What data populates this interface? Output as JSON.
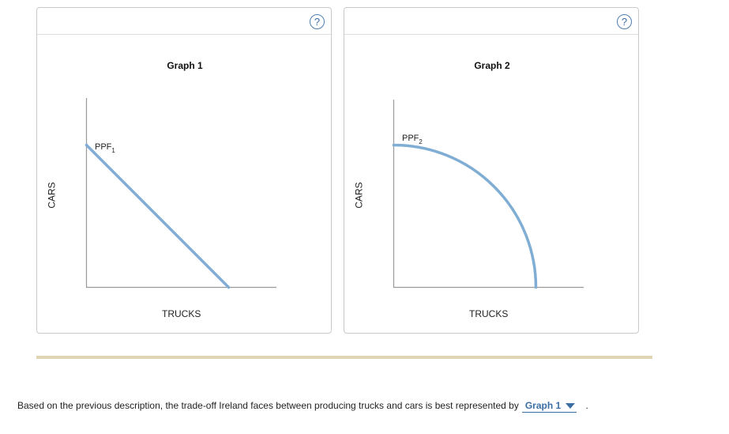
{
  "help_icon_label": "?",
  "question": {
    "text": "Based on the previous description, the trade-off Ireland faces between producing trucks and cars is best represented by",
    "selected": "Graph 1",
    "end_punct": "."
  },
  "chart_data": [
    {
      "type": "line",
      "title": "Graph 1",
      "xlabel": "TRUCKS",
      "ylabel": "CARS",
      "series": [
        {
          "name": "PPF",
          "subscript": "1",
          "shape": "straight line",
          "x": [
            0,
            1
          ],
          "y": [
            1,
            0
          ]
        }
      ],
      "color": "#7fadd4"
    },
    {
      "type": "line",
      "title": "Graph 2",
      "xlabel": "TRUCKS",
      "ylabel": "CARS",
      "series": [
        {
          "name": "PPF",
          "subscript": "2",
          "shape": "concave (bowed outward)",
          "x": [
            0,
            1
          ],
          "y": [
            1,
            0
          ]
        }
      ],
      "color": "#7fadd4"
    }
  ]
}
